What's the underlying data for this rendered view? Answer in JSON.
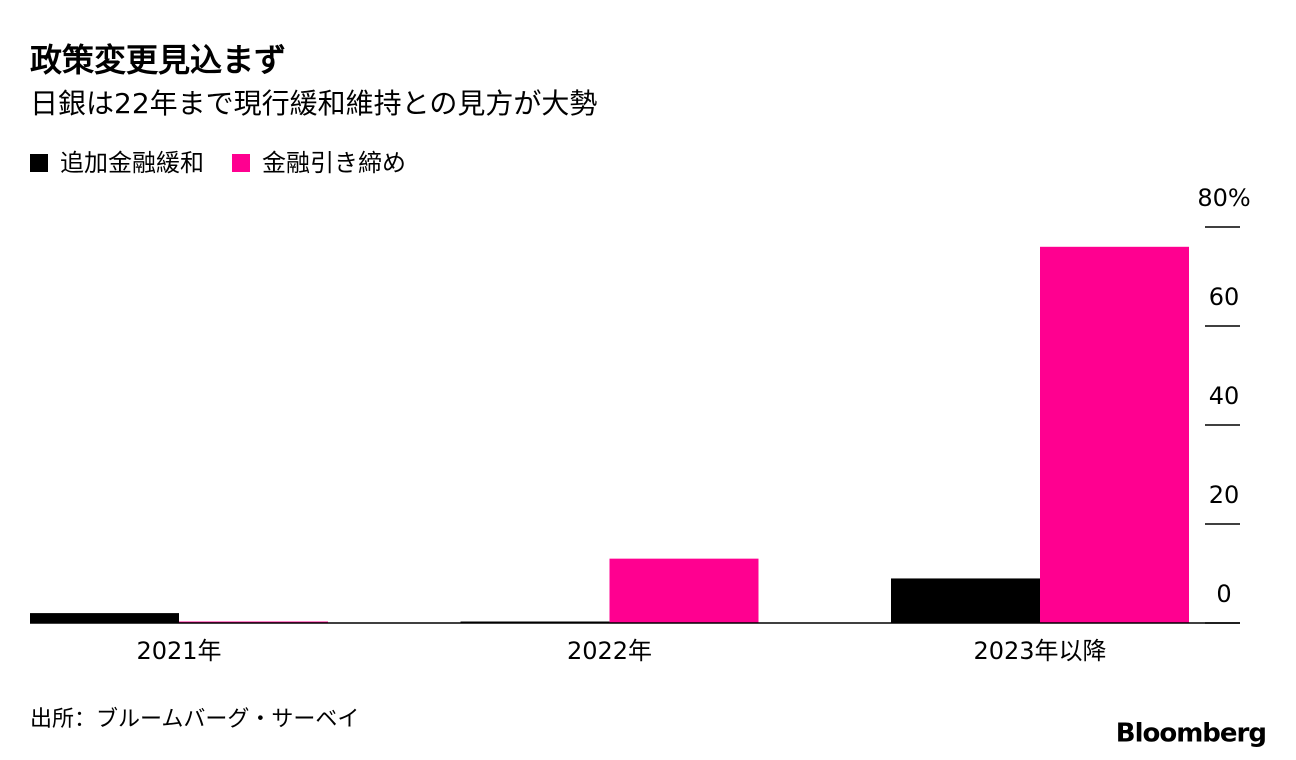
{
  "chart_data": {
    "type": "bar",
    "title": "政策変更見込まず",
    "subtitle": "日銀は22年まで現行緩和維持との見方が大勢",
    "categories": [
      "2021年",
      "2022年",
      "2023年以降"
    ],
    "series": [
      {
        "name": "追加金融緩和",
        "color": "#000000",
        "values": [
          2,
          0.3,
          9
        ]
      },
      {
        "name": "金融引き締め",
        "color": "#ff0090",
        "values": [
          0.3,
          13,
          76
        ]
      }
    ],
    "ylim": [
      0,
      80
    ],
    "yticks": [
      0,
      20,
      40,
      60,
      {
        "value": 80,
        "label": "80%"
      }
    ],
    "legend": "top-left",
    "source": "出所：ブルームバーグ・サーベイ",
    "brand": "Bloomberg"
  }
}
